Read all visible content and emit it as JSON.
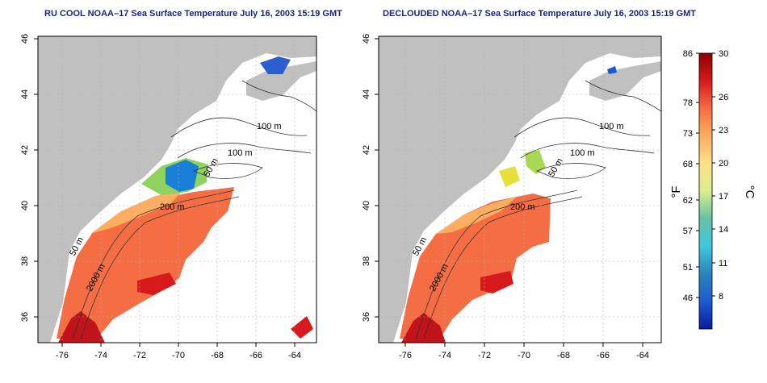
{
  "panels": [
    {
      "title": "RU COOL NOAA–17 Sea Surface Temperature July 16, 2003 15:19 GMT",
      "contour_labels": [
        "100 m",
        "100 m",
        "50 m",
        "200 m",
        "50 m",
        "2000 m"
      ]
    },
    {
      "title": "DECLOUDED NOAA–17 Sea Surface Temperature July 16, 2003 15:19 GMT",
      "contour_labels": [
        "100 m",
        "100 m",
        "50 m",
        "200 m",
        "50 m",
        "2000 m"
      ]
    }
  ],
  "axes": {
    "lat_ticks": [
      "36",
      "38",
      "40",
      "42",
      "44",
      "46"
    ],
    "lon_ticks": [
      "-76",
      "-74",
      "-72",
      "-70",
      "-68",
      "-66",
      "-64"
    ]
  },
  "colorbar": {
    "fahrenheit_label": "°F",
    "celsius_label": "°C",
    "fahrenheit_ticks": [
      "86",
      "78",
      "73",
      "68",
      "62",
      "57",
      "51",
      "46"
    ],
    "celsius_ticks": [
      "30",
      "26",
      "23",
      "20",
      "17",
      "14",
      "11",
      "8"
    ],
    "colors": [
      "#8b0000",
      "#d7191c",
      "#f46d43",
      "#fdae61",
      "#fee08b",
      "#d9ef8b",
      "#66c2a5",
      "#3ec8e0",
      "#2b83ba",
      "#1a5ccf",
      "#0a1b9c"
    ]
  }
}
